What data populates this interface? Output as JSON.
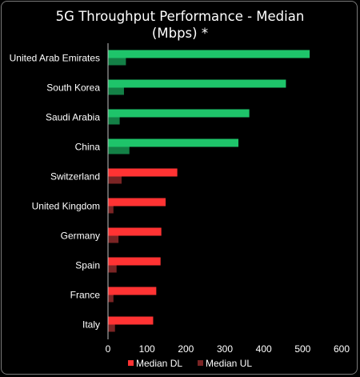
{
  "chart_data": {
    "type": "bar",
    "orientation": "horizontal",
    "title_lines": [
      "5G Throughput Performance - Median",
      "(Mbps) *"
    ],
    "categories": [
      "United Arab Emirates",
      "South Korea",
      "Saudi Arabia",
      "China",
      "Switzerland",
      "United Kingdom",
      "Germany",
      "Spain",
      "France",
      "Italy"
    ],
    "series": [
      {
        "name": "Median DL",
        "values": [
          518,
          457,
          363,
          335,
          178,
          148,
          137,
          135,
          124,
          116
        ]
      },
      {
        "name": "Median UL",
        "values": [
          46,
          41,
          30,
          55,
          35,
          14,
          27,
          22,
          14,
          18
        ]
      }
    ],
    "colors": {
      "dl_top": "#1ec46a",
      "ul_top": "#138046",
      "dl_bottom": "#ff3333",
      "ul_bottom": "#7a2424"
    },
    "highlight_top_count": 4,
    "xlim": [
      0,
      600
    ],
    "xticks": [
      0,
      100,
      200,
      300,
      400,
      500,
      600
    ],
    "legend": {
      "position": "bottom",
      "items": [
        {
          "label": "Median DL",
          "color": "#ff3333"
        },
        {
          "label": "Median UL",
          "color": "#7a2424"
        }
      ]
    }
  }
}
